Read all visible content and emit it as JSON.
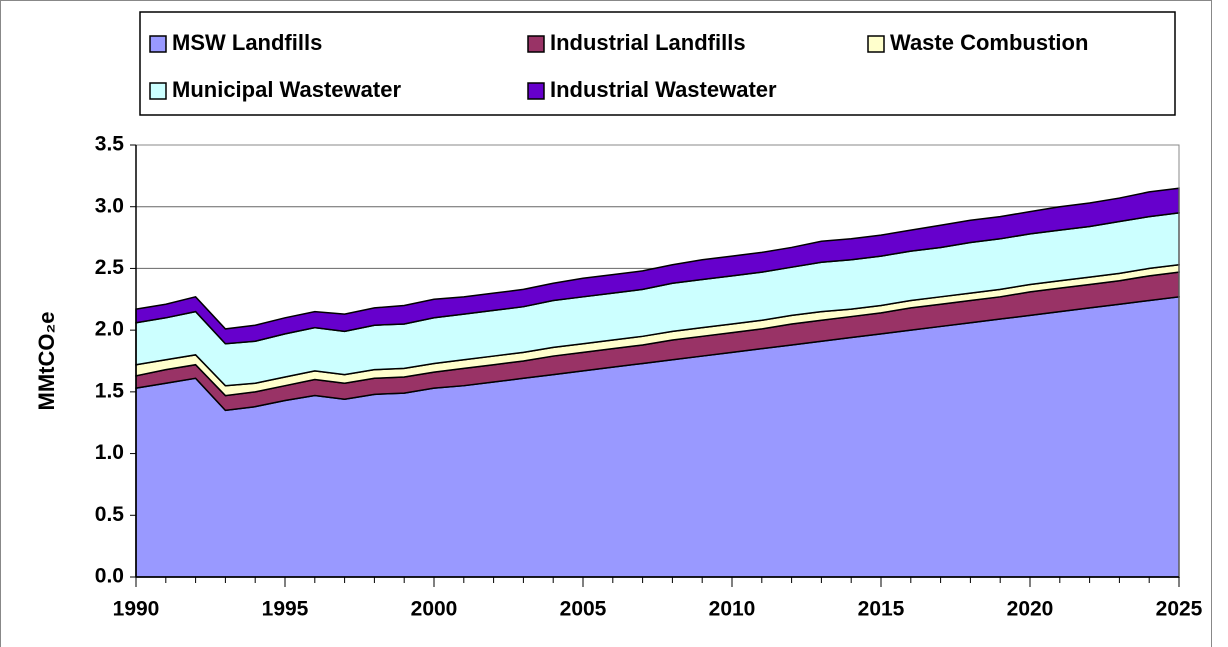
{
  "chart_data": {
    "type": "stacked_area",
    "y_label": "MMtCO₂e",
    "x": [
      1990,
      1991,
      1992,
      1993,
      1994,
      1995,
      1996,
      1997,
      1998,
      1999,
      2000,
      2001,
      2002,
      2003,
      2004,
      2005,
      2006,
      2007,
      2008,
      2009,
      2010,
      2011,
      2012,
      2013,
      2014,
      2015,
      2016,
      2017,
      2018,
      2019,
      2020,
      2021,
      2022,
      2023,
      2024,
      2025
    ],
    "xlim": [
      1990,
      2025
    ],
    "xticks": [
      1990,
      1995,
      2000,
      2005,
      2010,
      2015,
      2020,
      2025
    ],
    "ylim": [
      0,
      3.5
    ],
    "yticks": [
      {
        "value": 0,
        "label": "0.0"
      },
      0.5,
      {
        "value": 1,
        "label": "1.0"
      },
      1.5,
      {
        "value": 2,
        "label": "2.0"
      },
      2.5,
      {
        "value": 3,
        "label": "3.0"
      },
      3.5
    ],
    "grid": true,
    "legend": "top",
    "series": [
      {
        "name": "MSW Landfills",
        "color": "#9999ff",
        "values": [
          1.53,
          1.57,
          1.61,
          1.35,
          1.38,
          1.43,
          1.47,
          1.44,
          1.48,
          1.49,
          1.53,
          1.55,
          1.58,
          1.61,
          1.64,
          1.67,
          1.7,
          1.73,
          1.76,
          1.79,
          1.82,
          1.85,
          1.88,
          1.91,
          1.94,
          1.97,
          2.0,
          2.03,
          2.06,
          2.09,
          2.12,
          2.15,
          2.18,
          2.21,
          2.24,
          2.27
        ]
      },
      {
        "name": "Industrial Landfills",
        "color": "#993366",
        "values": [
          0.1,
          0.11,
          0.11,
          0.12,
          0.12,
          0.12,
          0.13,
          0.13,
          0.13,
          0.13,
          0.13,
          0.14,
          0.14,
          0.14,
          0.15,
          0.15,
          0.15,
          0.15,
          0.16,
          0.16,
          0.16,
          0.16,
          0.17,
          0.17,
          0.17,
          0.17,
          0.18,
          0.18,
          0.18,
          0.18,
          0.19,
          0.19,
          0.19,
          0.19,
          0.2,
          0.2
        ]
      },
      {
        "name": "Waste Combustion",
        "color": "#ffffcc",
        "values": [
          0.09,
          0.08,
          0.08,
          0.08,
          0.07,
          0.07,
          0.07,
          0.07,
          0.07,
          0.07,
          0.07,
          0.07,
          0.07,
          0.07,
          0.07,
          0.07,
          0.07,
          0.07,
          0.07,
          0.07,
          0.07,
          0.07,
          0.07,
          0.07,
          0.06,
          0.06,
          0.06,
          0.06,
          0.06,
          0.06,
          0.06,
          0.06,
          0.06,
          0.06,
          0.06,
          0.06
        ]
      },
      {
        "name": "Municipal Wastewater",
        "color": "#ccffff",
        "values": [
          0.34,
          0.34,
          0.35,
          0.34,
          0.34,
          0.35,
          0.35,
          0.35,
          0.36,
          0.36,
          0.37,
          0.37,
          0.37,
          0.37,
          0.38,
          0.38,
          0.38,
          0.38,
          0.39,
          0.39,
          0.39,
          0.39,
          0.39,
          0.4,
          0.4,
          0.4,
          0.4,
          0.4,
          0.41,
          0.41,
          0.41,
          0.41,
          0.41,
          0.42,
          0.42,
          0.42
        ]
      },
      {
        "name": "Industrial Wastewater",
        "color": "#6600cc",
        "values": [
          0.11,
          0.11,
          0.12,
          0.12,
          0.13,
          0.13,
          0.13,
          0.14,
          0.14,
          0.15,
          0.15,
          0.14,
          0.14,
          0.14,
          0.14,
          0.15,
          0.15,
          0.15,
          0.15,
          0.16,
          0.16,
          0.16,
          0.16,
          0.17,
          0.17,
          0.17,
          0.17,
          0.18,
          0.18,
          0.18,
          0.18,
          0.19,
          0.19,
          0.19,
          0.2,
          0.2
        ]
      }
    ]
  }
}
